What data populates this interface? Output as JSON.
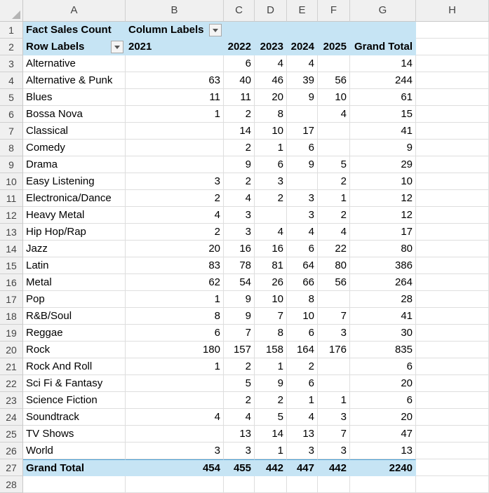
{
  "columns": [
    "A",
    "B",
    "C",
    "D",
    "E",
    "F",
    "G",
    "H"
  ],
  "pivot": {
    "title": "Fact Sales Count",
    "column_labels": "Column Labels",
    "row_labels": "Row Labels",
    "years": [
      "2021",
      "2022",
      "2023",
      "2024",
      "2025"
    ],
    "grand_total_label": "Grand Total",
    "rows": [
      {
        "label": "Alternative",
        "values": [
          "",
          "6",
          "4",
          "4",
          ""
        ],
        "total": "14"
      },
      {
        "label": "Alternative & Punk",
        "values": [
          "63",
          "40",
          "46",
          "39",
          "56"
        ],
        "total": "244"
      },
      {
        "label": "Blues",
        "values": [
          "11",
          "11",
          "20",
          "9",
          "10"
        ],
        "total": "61"
      },
      {
        "label": "Bossa Nova",
        "values": [
          "1",
          "2",
          "8",
          "",
          "4"
        ],
        "total": "15"
      },
      {
        "label": "Classical",
        "values": [
          "",
          "14",
          "10",
          "17",
          ""
        ],
        "total": "41"
      },
      {
        "label": "Comedy",
        "values": [
          "",
          "2",
          "1",
          "6",
          ""
        ],
        "total": "9"
      },
      {
        "label": "Drama",
        "values": [
          "",
          "9",
          "6",
          "9",
          "5"
        ],
        "total": "29"
      },
      {
        "label": "Easy Listening",
        "values": [
          "3",
          "2",
          "3",
          "",
          "2"
        ],
        "total": "10"
      },
      {
        "label": "Electronica/Dance",
        "values": [
          "2",
          "4",
          "2",
          "3",
          "1"
        ],
        "total": "12"
      },
      {
        "label": "Heavy Metal",
        "values": [
          "4",
          "3",
          "",
          "3",
          "2"
        ],
        "total": "12"
      },
      {
        "label": "Hip Hop/Rap",
        "values": [
          "2",
          "3",
          "4",
          "4",
          "4"
        ],
        "total": "17"
      },
      {
        "label": "Jazz",
        "values": [
          "20",
          "16",
          "16",
          "6",
          "22"
        ],
        "total": "80"
      },
      {
        "label": "Latin",
        "values": [
          "83",
          "78",
          "81",
          "64",
          "80"
        ],
        "total": "386"
      },
      {
        "label": "Metal",
        "values": [
          "62",
          "54",
          "26",
          "66",
          "56"
        ],
        "total": "264"
      },
      {
        "label": "Pop",
        "values": [
          "1",
          "9",
          "10",
          "8",
          ""
        ],
        "total": "28"
      },
      {
        "label": "R&B/Soul",
        "values": [
          "8",
          "9",
          "7",
          "10",
          "7"
        ],
        "total": "41"
      },
      {
        "label": "Reggae",
        "values": [
          "6",
          "7",
          "8",
          "6",
          "3"
        ],
        "total": "30"
      },
      {
        "label": "Rock",
        "values": [
          "180",
          "157",
          "158",
          "164",
          "176"
        ],
        "total": "835"
      },
      {
        "label": "Rock And Roll",
        "values": [
          "1",
          "2",
          "1",
          "2",
          ""
        ],
        "total": "6"
      },
      {
        "label": "Sci Fi & Fantasy",
        "values": [
          "",
          "5",
          "9",
          "6",
          ""
        ],
        "total": "20"
      },
      {
        "label": "Science Fiction",
        "values": [
          "",
          "2",
          "2",
          "1",
          "1"
        ],
        "total": "6"
      },
      {
        "label": "Soundtrack",
        "values": [
          "4",
          "4",
          "5",
          "4",
          "3"
        ],
        "total": "20"
      },
      {
        "label": "TV Shows",
        "values": [
          "",
          "13",
          "14",
          "13",
          "7"
        ],
        "total": "47"
      },
      {
        "label": "World",
        "values": [
          "3",
          "3",
          "1",
          "3",
          "3"
        ],
        "total": "13"
      }
    ],
    "grand_totals": [
      "454",
      "455",
      "442",
      "447",
      "442"
    ],
    "grand_total_all": "2240"
  },
  "row_count": 28
}
